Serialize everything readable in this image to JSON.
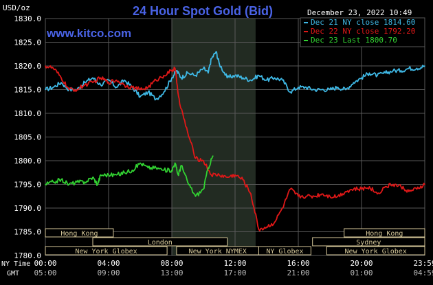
{
  "header": {
    "title": "24 Hour Spot Gold (Bid)",
    "unit": "USD/oz",
    "timestamp": "December 23, 2022 10:49",
    "watermark": "www.kitco.com"
  },
  "colors": {
    "background": "#000000",
    "grid": "#595959",
    "title": "#4a63e6",
    "watermark": "#4a63e6",
    "axis_text": "#ffffff",
    "night_band": "#222b22",
    "session_box_fill": "#000000",
    "session_box_border": "#d7c99a",
    "session_text": "#d7c99a"
  },
  "chart_data": {
    "type": "line",
    "title": "24 Hour Spot Gold (Bid)",
    "ylabel": "USD/oz",
    "ylim": [
      1780,
      1830
    ],
    "yticks": [
      "1830.0",
      "1825.0",
      "1820.0",
      "1815.0",
      "1810.0",
      "1805.0",
      "1800.0",
      "1795.0",
      "1790.0",
      "1785.0",
      "1780.0"
    ],
    "xlim": [
      0,
      24
    ],
    "xticks": [
      {
        "hour": 0,
        "label": "00:00",
        "gmt": "05:00"
      },
      {
        "hour": 4,
        "label": "04:00",
        "gmt": "09:00"
      },
      {
        "hour": 8,
        "label": "08:00",
        "gmt": "13:00"
      },
      {
        "hour": 12,
        "label": "12:00",
        "gmt": "17:00"
      },
      {
        "hour": 16,
        "label": "16:00",
        "gmt": "21:00"
      },
      {
        "hour": 20,
        "label": "20:00",
        "gmt": "01:00"
      },
      {
        "hour": 24,
        "label": "23:59",
        "gmt": "04:59"
      }
    ],
    "xaxis_row_labels": {
      "ny": "NY Time",
      "gmt": "GMT"
    },
    "grid": true,
    "legend_placement": "top-right",
    "shaded_period": [
      8,
      13.3
    ],
    "series": [
      {
        "name": "Dec 21 NY close 1814.60",
        "color": "#3fb9e6",
        "x": [
          0,
          0.5,
          1,
          1.5,
          2,
          2.5,
          3,
          3.5,
          4,
          4.5,
          5,
          5.5,
          6,
          6.5,
          7,
          7.5,
          8,
          8.3,
          8.6,
          9,
          9.5,
          10,
          10.3,
          10.5,
          10.8,
          11,
          11.5,
          12,
          12.5,
          13,
          13.5,
          14,
          14.5,
          15,
          15.5,
          16,
          16.5,
          17,
          17.5,
          18,
          18.5,
          19,
          19.5,
          20,
          20.5,
          21,
          21.5,
          22,
          22.5,
          23,
          23.5,
          24
        ],
        "y": [
          1815,
          1815.5,
          1816.5,
          1815,
          1815,
          1816.5,
          1817.5,
          1816,
          1817,
          1815.5,
          1817,
          1815.5,
          1813.5,
          1814.5,
          1813,
          1814.5,
          1817.5,
          1819,
          1817.5,
          1818.5,
          1818,
          1819.5,
          1818.5,
          1821.5,
          1823,
          1820.5,
          1817.5,
          1818,
          1817.5,
          1817,
          1818,
          1817,
          1817.5,
          1817,
          1814.5,
          1815.5,
          1815.5,
          1815,
          1815,
          1815,
          1815.5,
          1815,
          1816.5,
          1817.5,
          1818.5,
          1818,
          1818.5,
          1819,
          1819,
          1819.5,
          1819.5,
          1820
        ]
      },
      {
        "name": "Dec 22 NY close 1792.20",
        "color": "#e01818",
        "x": [
          0,
          0.5,
          1,
          1.5,
          2,
          2.5,
          3,
          3.5,
          4,
          4.5,
          5,
          5.5,
          6,
          6.5,
          7,
          7.5,
          8,
          8.2,
          8.5,
          9,
          9.5,
          10,
          10.5,
          11,
          11.5,
          12,
          12.5,
          13,
          13.5,
          14,
          14.5,
          15,
          15.5,
          16,
          16.5,
          17,
          17.5,
          18,
          18.5,
          19,
          19.5,
          20,
          20.5,
          21,
          21.5,
          22,
          22.5,
          23,
          23.5,
          24
        ],
        "y": [
          1820,
          1819.5,
          1817.5,
          1815,
          1815,
          1816,
          1816.5,
          1817.5,
          1816.5,
          1817,
          1816,
          1815.5,
          1815,
          1815.5,
          1817,
          1818,
          1819,
          1819.5,
          1812,
          1806,
          1800.5,
          1800,
          1797,
          1797,
          1796.5,
          1797,
          1796,
          1793,
          1785.5,
          1786,
          1787,
          1790,
          1794,
          1792.5,
          1792.5,
          1792.5,
          1793,
          1792.5,
          1792.5,
          1793.5,
          1794,
          1794,
          1794.5,
          1793,
          1794.5,
          1795,
          1794.5,
          1793.5,
          1794,
          1795
        ]
      },
      {
        "name": "Dec 23 Last 1800.70",
        "color": "#32d232",
        "x": [
          0,
          0.5,
          1,
          1.5,
          2,
          2.5,
          3,
          3.3,
          3.5,
          4,
          4.5,
          5,
          5.5,
          6,
          6.5,
          7,
          7.5,
          8,
          8.2,
          8.4,
          8.6,
          9,
          9.5,
          10,
          10.3,
          10.6
        ],
        "y": [
          1795,
          1795.5,
          1796,
          1795,
          1795.5,
          1795.5,
          1796.5,
          1795,
          1797,
          1797,
          1797,
          1797.5,
          1798,
          1799.5,
          1798.5,
          1798.5,
          1798,
          1798,
          1799.5,
          1797,
          1799,
          1795.5,
          1792.5,
          1794,
          1798.5,
          1801
        ]
      }
    ]
  },
  "sessions": [
    {
      "name": "Hong Kong",
      "row": 0,
      "start": 0,
      "end": 4.3
    },
    {
      "name": "Hong Kong",
      "row": 0,
      "start": 18.9,
      "end": 24
    },
    {
      "name": "London",
      "row": 1,
      "start": 3,
      "end": 11.5
    },
    {
      "name": "Sydney",
      "row": 1,
      "start": 16.9,
      "end": 24
    },
    {
      "name": "New York Globex",
      "row": 2,
      "start": 0,
      "end": 7.7
    },
    {
      "name": "New York NYMEX",
      "row": 2,
      "start": 8.3,
      "end": 13.5
    },
    {
      "name": "NY Globex",
      "row": 2,
      "start": 13.5,
      "end": 16.8
    },
    {
      "name": "New York Globex",
      "row": 2,
      "start": 17.8,
      "end": 24
    }
  ]
}
